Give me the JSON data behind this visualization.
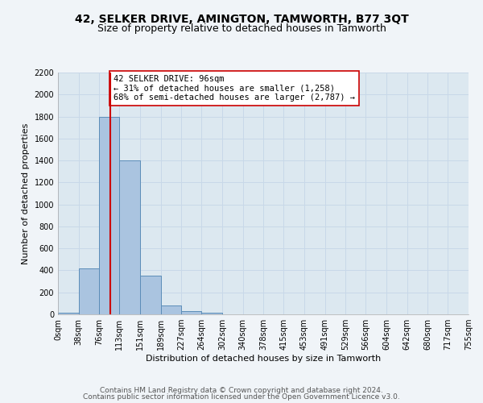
{
  "title": "42, SELKER DRIVE, AMINGTON, TAMWORTH, B77 3QT",
  "subtitle": "Size of property relative to detached houses in Tamworth",
  "xlabel": "Distribution of detached houses by size in Tamworth",
  "ylabel": "Number of detached properties",
  "bin_labels": [
    "0sqm",
    "38sqm",
    "76sqm",
    "113sqm",
    "151sqm",
    "189sqm",
    "227sqm",
    "264sqm",
    "302sqm",
    "340sqm",
    "378sqm",
    "415sqm",
    "453sqm",
    "491sqm",
    "529sqm",
    "566sqm",
    "604sqm",
    "642sqm",
    "680sqm",
    "717sqm",
    "755sqm"
  ],
  "bin_edges": [
    0,
    38,
    76,
    113,
    151,
    189,
    227,
    264,
    302,
    340,
    378,
    415,
    453,
    491,
    529,
    566,
    604,
    642,
    680,
    717,
    755
  ],
  "bar_heights": [
    15,
    420,
    1800,
    1400,
    350,
    80,
    30,
    18,
    0,
    0,
    0,
    0,
    0,
    0,
    0,
    0,
    0,
    0,
    0,
    0
  ],
  "bar_color": "#aac4e0",
  "bar_edge_color": "#5b8db8",
  "vline_x": 96,
  "vline_color": "#cc0000",
  "annotation_text": "42 SELKER DRIVE: 96sqm\n← 31% of detached houses are smaller (1,258)\n68% of semi-detached houses are larger (2,787) →",
  "annotation_box_color": "#ffffff",
  "annotation_box_edge_color": "#cc0000",
  "ylim": [
    0,
    2200
  ],
  "yticks": [
    0,
    200,
    400,
    600,
    800,
    1000,
    1200,
    1400,
    1600,
    1800,
    2000,
    2200
  ],
  "grid_color": "#c8d8e8",
  "background_color": "#dce8f0",
  "fig_background_color": "#f0f4f8",
  "footer_line1": "Contains HM Land Registry data © Crown copyright and database right 2024.",
  "footer_line2": "Contains public sector information licensed under the Open Government Licence v3.0.",
  "title_fontsize": 10,
  "subtitle_fontsize": 9,
  "axis_label_fontsize": 8,
  "tick_fontsize": 7,
  "annotation_fontsize": 7.5,
  "footer_fontsize": 6.5
}
